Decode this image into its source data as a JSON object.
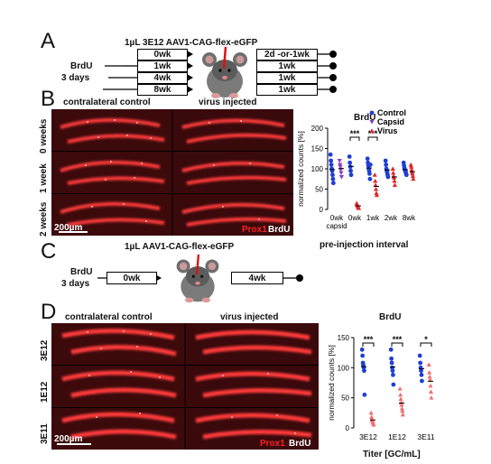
{
  "panel_a": {
    "letter": "A",
    "title": "1µL 3E12 AAV1-CAG-flex-eGFP",
    "brdu_label": "BrdU",
    "days_label": "3 days",
    "left_boxes": [
      "0wk",
      "1wk",
      "4wk",
      "8wk"
    ],
    "right_boxes": [
      "2d -or-1wk",
      "1wk",
      "1wk",
      "1wk"
    ]
  },
  "panel_b": {
    "letter": "B",
    "col_left": "contralateral control",
    "col_right": "virus injected",
    "rows": [
      "0 weeks",
      "1 week",
      "2 weeks"
    ],
    "scale": "200µm",
    "stain_prox": "Prox1",
    "stain_brdu": "BrdU"
  },
  "chart_b_title": "BrdU",
  "chart_b_xlabel": "pre-injection interval",
  "panel_c": {
    "letter": "C",
    "title": "1µL AAV1-CAG-flex-eGFP",
    "brdu_label": "BrdU",
    "days_label": "3 days",
    "box_left": "0wk",
    "box_right": "4wk"
  },
  "panel_d": {
    "letter": "D",
    "col_left": "contralateral control",
    "col_right": "virus injected",
    "rows": [
      "3E12",
      "1E12",
      "3E11"
    ],
    "scale": "200µm",
    "stain_prox": "Prox1",
    "stain_brdu": "BrdU"
  },
  "chart_d_title": "BrdU",
  "chart_d_xlabel": "Titer [GC/mL]",
  "colors": {
    "control": "#1f3fd6",
    "capsid": "#8a3fbf",
    "virus": "#e0282b",
    "virus_light": "#f07070"
  },
  "chart_data": [
    {
      "type": "scatter",
      "ylabel": "normalized counts [%]",
      "ylim": [
        0,
        200
      ],
      "yticks": [
        0,
        50,
        100,
        150,
        200
      ],
      "categories": [
        "0wk capsid",
        "0wk",
        "1wk",
        "2wk",
        "8wk"
      ],
      "category_labels": [
        [
          "0wk",
          "capsid"
        ],
        [
          "0wk",
          ""
        ],
        [
          "1wk",
          ""
        ],
        [
          "2wk",
          ""
        ],
        [
          "8wk",
          ""
        ]
      ],
      "legend": [
        "Control",
        "Capsid",
        "Virus"
      ],
      "significance": [
        {
          "category": "0wk",
          "label": "***"
        },
        {
          "category": "1wk",
          "label": "***"
        }
      ],
      "series": [
        {
          "name": "Control",
          "points": [
            {
              "c": 0,
              "v": [
                135,
                120,
                110,
                100,
                95,
                85,
                75,
                65
              ]
            },
            {
              "c": 1,
              "v": [
                130,
                115,
                105,
                95,
                85
              ]
            },
            {
              "c": 2,
              "v": [
                125,
                115,
                108,
                100,
                95,
                88,
                75,
                110
              ]
            },
            {
              "c": 3,
              "v": [
                120,
                110,
                100,
                95,
                90,
                85,
                80
              ]
            },
            {
              "c": 4,
              "v": [
                115,
                108,
                102,
                98,
                95,
                92,
                88,
                85
              ]
            }
          ]
        },
        {
          "name": "Capsid",
          "points": [
            {
              "c": 0,
              "v": [
                120,
                110,
                105,
                98,
                90,
                80
              ]
            }
          ]
        },
        {
          "name": "Virus",
          "points": [
            {
              "c": 1,
              "v": [
                15,
                12,
                10,
                8,
                5,
                3
              ]
            },
            {
              "c": 2,
              "v": [
                85,
                70,
                60,
                50,
                40,
                35
              ]
            },
            {
              "c": 3,
              "v": [
                100,
                90,
                82,
                78,
                70,
                60
              ]
            },
            {
              "c": 4,
              "v": [
                110,
                105,
                98,
                92,
                88,
                82,
                75
              ]
            }
          ]
        }
      ]
    },
    {
      "type": "scatter",
      "ylabel": "normalized counts [%]",
      "ylim": [
        0,
        150
      ],
      "yticks": [
        0,
        50,
        100,
        150
      ],
      "categories": [
        "3E12",
        "1E12",
        "3E11"
      ],
      "significance": [
        {
          "category": "3E12",
          "label": "***"
        },
        {
          "category": "1E12",
          "label": "***"
        },
        {
          "category": "3E11",
          "label": "*"
        }
      ],
      "series": [
        {
          "name": "Control",
          "points": [
            {
              "c": 0,
              "v": [
                130,
                120,
                108,
                104,
                100,
                95,
                55
              ]
            },
            {
              "c": 1,
              "v": [
                130,
                115,
                108,
                100,
                95,
                88,
                72
              ]
            },
            {
              "c": 2,
              "v": [
                120,
                108,
                100,
                95,
                88,
                78
              ]
            }
          ]
        },
        {
          "name": "Virus",
          "points": [
            {
              "c": 0,
              "v": [
                25,
                18,
                14,
                12,
                10,
                8,
                5
              ]
            },
            {
              "c": 1,
              "v": [
                65,
                55,
                48,
                42,
                38,
                32,
                28,
                22
              ]
            },
            {
              "c": 2,
              "v": [
                105,
                92,
                85,
                80,
                70,
                60,
                50
              ]
            }
          ]
        }
      ]
    }
  ]
}
